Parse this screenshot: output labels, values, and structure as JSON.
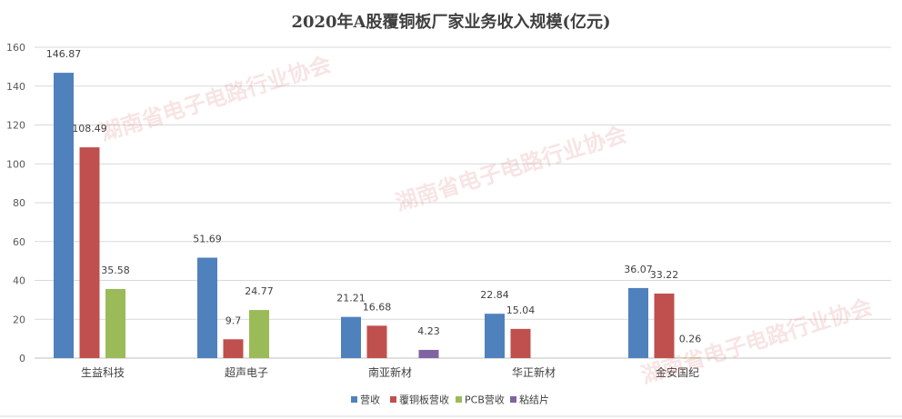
{
  "chart_data": {
    "type": "bar",
    "title": "2020年A股覆铜板厂家业务收入规模(亿元)",
    "categories": [
      "生益科技",
      "超声电子",
      "南亚新材",
      "华正新材",
      "金安国纪"
    ],
    "series": [
      {
        "name": "营收",
        "color": "#4F81BD",
        "values": [
          146.87,
          51.69,
          21.21,
          22.84,
          36.07
        ],
        "labels": [
          "146.87",
          "51.69",
          "21.21",
          "22.84",
          "36.07"
        ]
      },
      {
        "name": "覆铜板营收",
        "color": "#C0504D",
        "values": [
          108.49,
          9.7,
          16.68,
          15.04,
          33.22
        ],
        "labels": [
          "108.49",
          "9.7",
          "16.68",
          "15.04",
          "33.22"
        ]
      },
      {
        "name": "PCB营收",
        "color": "#9BBB59",
        "values": [
          35.58,
          24.77,
          null,
          null,
          0.26
        ],
        "labels": [
          "35.58",
          "24.77",
          null,
          null,
          "0.26"
        ]
      },
      {
        "name": "粘结片",
        "color": "#8064A2",
        "values": [
          null,
          null,
          4.23,
          null,
          null
        ],
        "labels": [
          null,
          null,
          "4.23",
          null,
          null
        ]
      }
    ],
    "ylim": [
      0,
      160
    ],
    "yticks": [
      "0",
      "20",
      "40",
      "60",
      "80",
      "100",
      "120",
      "140",
      "160"
    ],
    "grid": true,
    "legend_position": "bottom"
  },
  "watermark": "湖南省电子电路行业协会"
}
